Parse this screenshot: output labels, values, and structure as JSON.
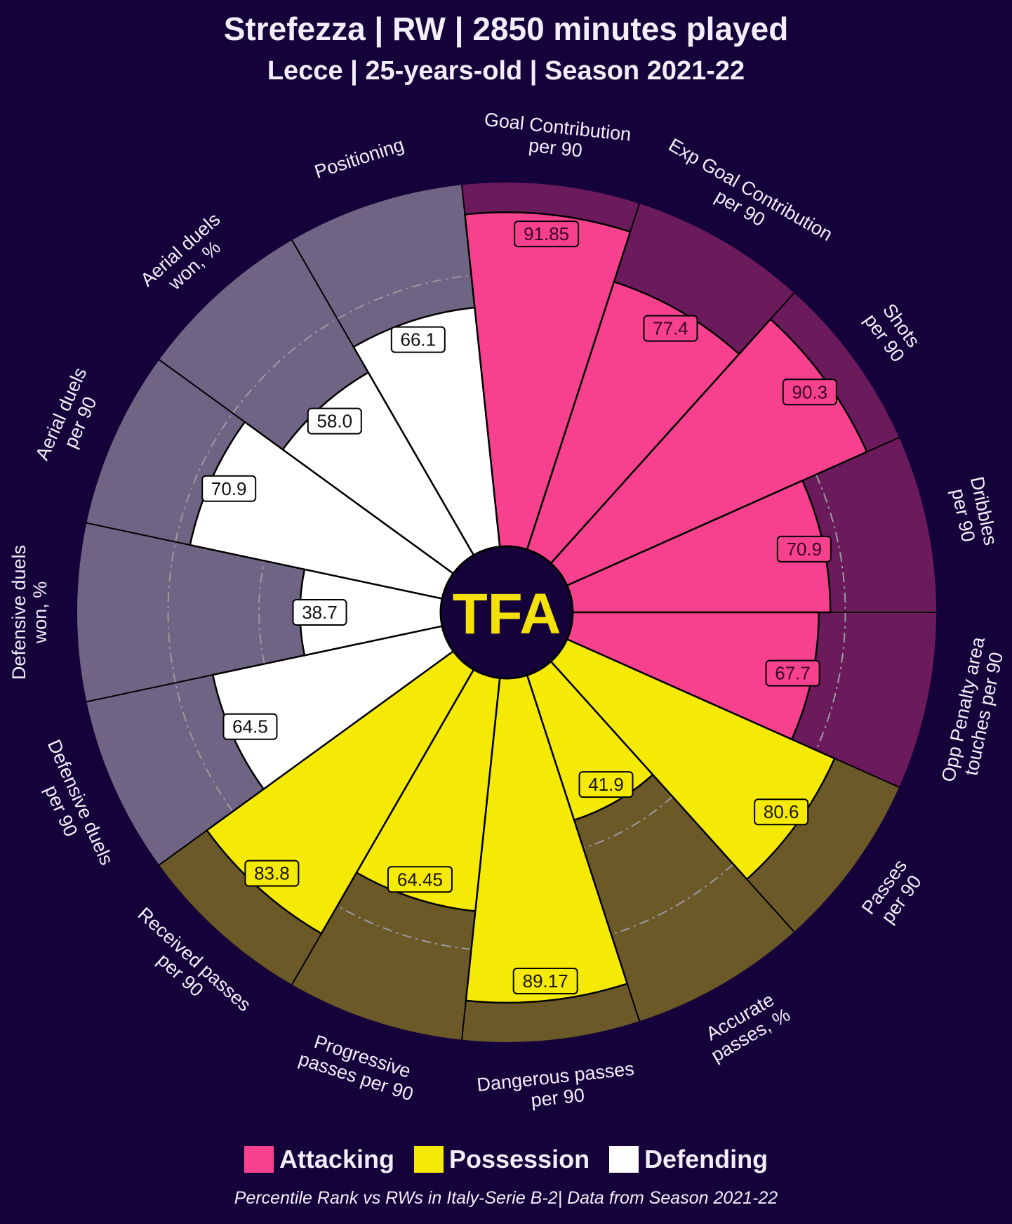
{
  "header": {
    "title": "Strefezza | RW | 2850 minutes played",
    "subtitle": "Lecce | 25-years-old | Season 2021-22"
  },
  "logo": {
    "text": "TFA",
    "color": "#f5e10a"
  },
  "legend": {
    "items": [
      {
        "label": "Attacking",
        "color": "#f7418f"
      },
      {
        "label": "Possession",
        "color": "#f5e906"
      },
      {
        "label": "Defending",
        "color": "#ffffff"
      }
    ]
  },
  "footer": {
    "note": "Percentile Rank vs RWs in Italy-Serie B-2| Data from Season 2021-22"
  },
  "chart_data": {
    "type": "pizza",
    "range": [
      0,
      100
    ],
    "gridlines": [
      50,
      75
    ],
    "group_colors": {
      "Attacking": {
        "slice": "#f7418f",
        "background": "#6b1a5b",
        "label_text": "#3a0020"
      },
      "Possession": {
        "slice": "#f5e906",
        "background": "#6b5a28",
        "label_text": "#1a1500"
      },
      "Defending": {
        "slice": "#ffffff",
        "background": "#706485",
        "label_text": "#111111"
      }
    },
    "params": [
      {
        "label": [
          "Goal Contribution",
          "per 90"
        ],
        "value": 91.85,
        "display": "91.85",
        "group": "Attacking"
      },
      {
        "label": [
          "Exp Goal Contribution",
          "per 90"
        ],
        "value": 77.4,
        "display": "77.4",
        "group": "Attacking"
      },
      {
        "label": [
          "Shots",
          "per 90"
        ],
        "value": 90.3,
        "display": "90.3",
        "group": "Attacking"
      },
      {
        "label": [
          "Dribbles",
          "per 90"
        ],
        "value": 70.9,
        "display": "70.9",
        "group": "Attacking"
      },
      {
        "label": [
          "Opp Penalty area",
          "touches per 90"
        ],
        "value": 67.7,
        "display": "67.7",
        "group": "Attacking"
      },
      {
        "label": [
          "Passes",
          "per 90"
        ],
        "value": 80.6,
        "display": "80.6",
        "group": "Possession"
      },
      {
        "label": [
          "Accurate",
          "passes, %"
        ],
        "value": 41.9,
        "display": "41.9",
        "group": "Possession"
      },
      {
        "label": [
          "Dangerous passes",
          "per 90"
        ],
        "value": 89.17,
        "display": "89.17",
        "group": "Possession"
      },
      {
        "label": [
          "Progressive",
          "passes per 90"
        ],
        "value": 64.45,
        "display": "64.45",
        "group": "Possession"
      },
      {
        "label": [
          "Received passes",
          "per 90"
        ],
        "value": 83.8,
        "display": "83.8",
        "group": "Possession"
      },
      {
        "label": [
          "Defensive duels",
          "per 90"
        ],
        "value": 64.5,
        "display": "64.5",
        "group": "Defending"
      },
      {
        "label": [
          "Defensive duels",
          "won, %"
        ],
        "value": 38.7,
        "display": "38.7",
        "group": "Defending"
      },
      {
        "label": [
          "Aerial duels",
          "per 90"
        ],
        "value": 70.9,
        "display": "70.9",
        "group": "Defending"
      },
      {
        "label": [
          "Aerial duels",
          "won, %"
        ],
        "value": 58.0,
        "display": "58.0",
        "group": "Defending"
      },
      {
        "label": [
          "Positioning"
        ],
        "value": 66.1,
        "display": "66.1",
        "group": "Defending"
      }
    ]
  }
}
